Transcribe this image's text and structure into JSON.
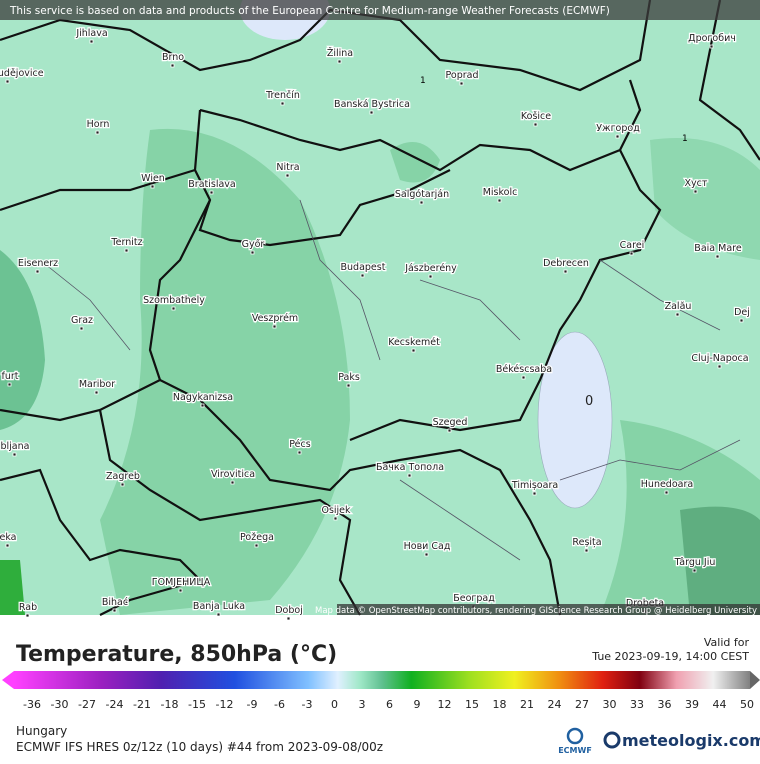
{
  "header": {
    "notice": "This service is based on data and products of the European Centre for Medium-range Weather Forecasts (ECMWF)"
  },
  "map": {
    "cities": [
      "Jihlava",
      "Brno",
      "Žilina",
      "Poprad",
      "Дрогобич",
      "Trenčín",
      "Banská Bystrica",
      "Košice",
      "Ужгород",
      "Horn",
      "Nitra",
      "Salgótarján",
      "Miskolc",
      "Хуст",
      "Wien",
      "Bratislava",
      "Győr",
      "Ternitz",
      "Carei",
      "Baia Mare",
      "Eisenerz",
      "Budapest",
      "Jászberény",
      "Debrecen",
      "Szombathely",
      "Zalău",
      "Veszprém",
      "Graz",
      "Dej",
      "Kecskemét",
      "Cluj-Napoca",
      "Békéscsaba",
      "Paks",
      "Maribor",
      "Nagykanizsa",
      "Szeged",
      "Pécs",
      "Zagreb",
      "Virovitica",
      "Бачка Топола",
      "Timișoara",
      "Hunedoara",
      "Osijek",
      "Požega",
      "Нови Сад",
      "Reșița",
      "Târgu Jiu",
      "ГОМЈЕНИЦА",
      "Bihać",
      "Banja Luka",
      "Doboj",
      "Београд",
      "Drobeta",
      "ské Budějovice",
      "furt",
      "bljana",
      "eka",
      "Rab"
    ],
    "isotherm_labels": [
      "1",
      "1",
      "0"
    ],
    "attribution": "Map data © OpenStreetMap contributors, rendering GIScience Research Group @ Heidelberg University"
  },
  "footer": {
    "title": "Temperature, 850hPa (°C)",
    "valid_label": "Valid for",
    "valid_time": "Tue 2023-09-19, 14:00 CEST",
    "scale_ticks": [
      -36,
      -30,
      -27,
      -24,
      -21,
      -18,
      -15,
      -12,
      -9,
      -6,
      -3,
      0,
      3,
      6,
      9,
      12,
      15,
      18,
      21,
      24,
      27,
      30,
      33,
      36,
      39,
      44,
      50
    ],
    "region": "Hungary",
    "model": "ECMWF IFS HRES 0z/12z (10 days) #44 from  2023-09-08/00z",
    "ecmwf_logo": "ECMWF",
    "brand": "meteologix.com"
  }
}
